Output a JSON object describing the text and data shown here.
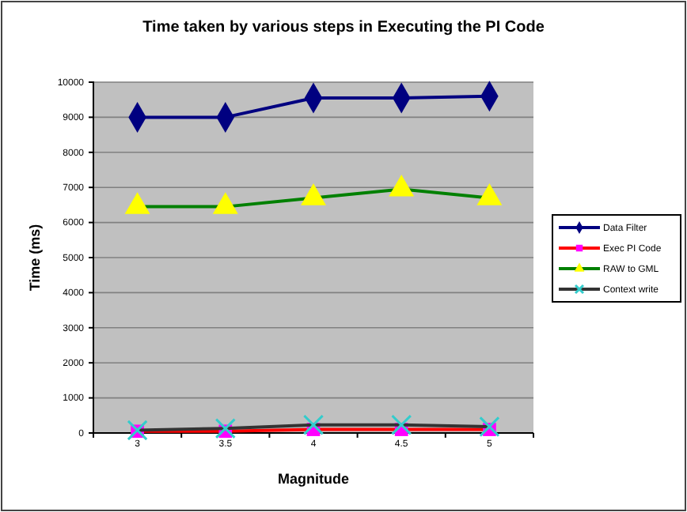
{
  "chart_data": {
    "type": "line",
    "title": "Time taken by various steps in Executing the PI Code",
    "xlabel": "Magnitude",
    "ylabel": "Time (ms)",
    "categories": [
      "3",
      "3.5",
      "4",
      "4.5",
      "5"
    ],
    "series": [
      {
        "name": "Data Filter",
        "color": "#000080",
        "marker": "diamond",
        "values": [
          9000,
          9000,
          9550,
          9550,
          9600
        ]
      },
      {
        "name": "Exec PI Code",
        "color": "#ff0000",
        "marker": "square",
        "values": [
          50,
          50,
          100,
          100,
          100
        ]
      },
      {
        "name": "RAW to GML",
        "color": "#008000",
        "marker": "triangle",
        "values": [
          6450,
          6450,
          6700,
          6950,
          6700
        ]
      },
      {
        "name": "Context write",
        "color": "#333333",
        "marker": "cross",
        "values": [
          80,
          130,
          230,
          230,
          180
        ]
      }
    ],
    "ylim": [
      0,
      10000
    ],
    "yticks": [
      0,
      1000,
      2000,
      3000,
      4000,
      5000,
      6000,
      7000,
      8000,
      9000,
      10000
    ],
    "grid": "y",
    "legend": "right"
  }
}
